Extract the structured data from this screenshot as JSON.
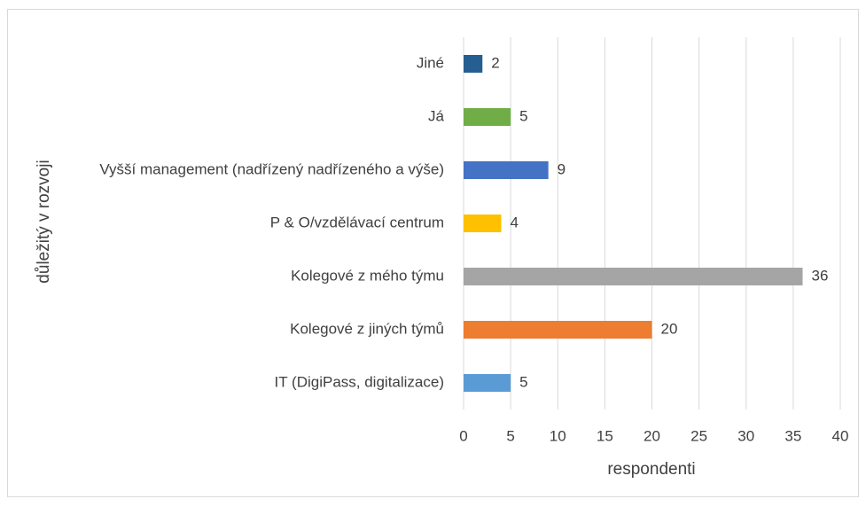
{
  "chart_data": {
    "type": "bar",
    "orientation": "horizontal",
    "categories": [
      "Jiné",
      "Já",
      "Vyšší management (nadřízený nadřízeného a výše)",
      "P & O/vzdělávací centrum",
      "Kolegové z mého týmu",
      "Kolegové z jiných týmů",
      "IT (DigiPass, digitalizace)"
    ],
    "values": [
      2,
      5,
      9,
      4,
      36,
      20,
      5
    ],
    "colors": [
      "#255e91",
      "#70ad47",
      "#4472c4",
      "#ffc000",
      "#a5a5a5",
      "#ed7d31",
      "#5b9bd5"
    ],
    "xlim": [
      0,
      40
    ],
    "xticks": [
      0,
      5,
      10,
      15,
      20,
      25,
      30,
      35,
      40
    ],
    "grid": true,
    "x_label": "respondenti",
    "y_label": "důležitý v rozvoji"
  }
}
